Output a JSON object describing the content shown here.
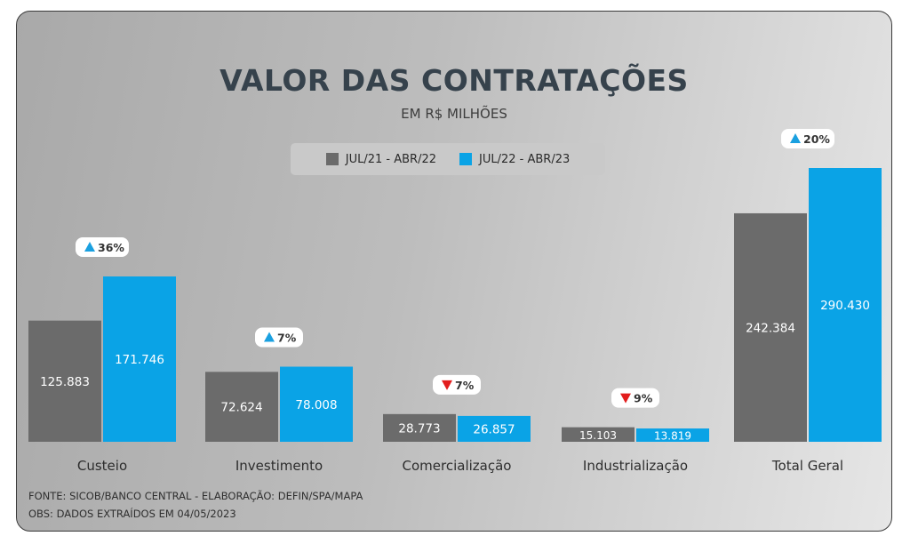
{
  "title": "VALOR DAS CONTRATAÇÕES",
  "subtitle": "EM R$ MILHÕES",
  "colors": {
    "series1": "#6b6b6b",
    "series2": "#0aa3e6",
    "up": "#1aa0e0",
    "down": "#e21d1d"
  },
  "legend": [
    {
      "label": "JUL/21 - ABR/22",
      "color": "#6b6b6b"
    },
    {
      "label": "JUL/22 - ABR/23",
      "color": "#0aa3e6"
    }
  ],
  "chart_data": {
    "type": "bar",
    "categories": [
      "Custeio",
      "Investimento",
      "Comercialização",
      "Industrialização",
      "Total Geral"
    ],
    "series": [
      {
        "name": "JUL/21 - ABR/22",
        "values": [
          125.883,
          72.624,
          28.773,
          15.103,
          242.384
        ],
        "labels": [
          "125.883",
          "72.624",
          "28.773",
          "15.103",
          "242.384"
        ]
      },
      {
        "name": "JUL/22 - ABR/23",
        "values": [
          171.746,
          78.008,
          26.857,
          13.819,
          290.43
        ],
        "labels": [
          "171.746",
          "78.008",
          "26.857",
          "13.819",
          "290.430"
        ]
      }
    ],
    "changes": [
      {
        "direction": "up",
        "label": "36%"
      },
      {
        "direction": "up",
        "label": "7%"
      },
      {
        "direction": "down",
        "label": "7%"
      },
      {
        "direction": "down",
        "label": "9%"
      },
      {
        "direction": "up",
        "label": "20%"
      }
    ],
    "scale_groups": [
      [
        0,
        1,
        2,
        3
      ],
      [
        4
      ]
    ],
    "legend_position": "top-center",
    "grid": false
  },
  "footnotes": [
    "FONTE: SICOB/BANCO CENTRAL - ELABORAÇÃO: DEFIN/SPA/MAPA",
    "OBS: DADOS EXTRAÍDOS EM 04/05/2023"
  ]
}
